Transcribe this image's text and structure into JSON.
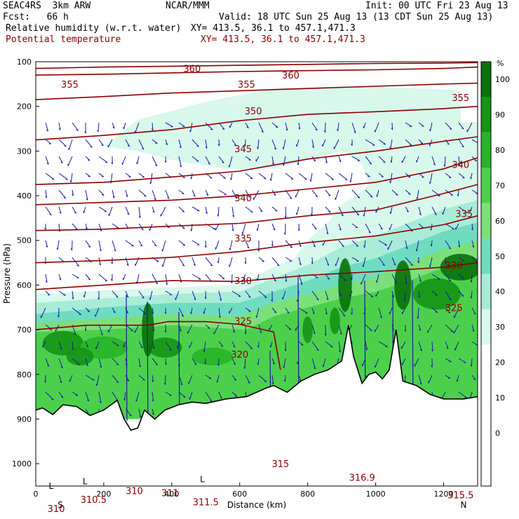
{
  "header": {
    "model": "SEAC4RS  3km ARW",
    "center": "NCAR/MMM",
    "init": "Init: 00 UTC Fri 23 Aug 13",
    "fcst": "Fcst:   66 h",
    "valid": "Valid: 18 UTC Sun 25 Aug 13 (13 CDT Sun 25 Aug 13)",
    "field1": "Relative humidity (w.r.t. water)",
    "xy1": "XY= 413.5, 36.1 to 457.1,471.3",
    "field2": "Potential temperature",
    "xy2": "XY= 413.5, 36.1 to 457.1,471.3"
  },
  "colors": {
    "theta_contour": "#8b0000",
    "wind_arrow": "#1a1aa0",
    "terrain": "#000000",
    "rh_scale": [
      "#ffffff",
      "#ffffff",
      "#ffffff",
      "#ffffff",
      "#d8f8ec",
      "#a8ecd8",
      "#6fdcc0",
      "#7ce07a",
      "#4cd04c",
      "#27b427",
      "#159415",
      "#0a700a"
    ]
  },
  "chart_data": {
    "type": "heatmap",
    "title": "Relative humidity (w.r.t. water); Potential temperature",
    "xlabel": "Distance (km)",
    "ylabel": "Pressure (hPa)",
    "xlim": [
      0,
      1300
    ],
    "ylim": [
      1050,
      100
    ],
    "x_ticks": [
      "0",
      "200",
      "400",
      "600",
      "800",
      "1000",
      "1200"
    ],
    "y_ticks": [
      "100",
      "200",
      "300",
      "400",
      "500",
      "600",
      "700",
      "800",
      "900",
      "1000"
    ],
    "endpoints": {
      "left": "S",
      "right": "N"
    },
    "colorbar": {
      "unit": "%",
      "ticks": [
        "100",
        "90",
        "80",
        "70",
        "60",
        "50",
        "40",
        "30",
        "20",
        "10",
        "0"
      ]
    },
    "rh_fill": [
      {
        "level": 30,
        "bands": [
          [
            0,
            610,
            870
          ],
          [
            330,
            390,
            870
          ],
          [
            600,
            1300,
            280
          ]
        ]
      },
      {
        "level": 60,
        "bands": [
          [
            0,
            650,
            850
          ]
        ]
      }
    ],
    "theta_contours": [
      {
        "label": "360",
        "points": [
          [
            0,
            115
          ],
          [
            200,
            112
          ],
          [
            400,
            110
          ],
          [
            600,
            108
          ],
          [
            800,
            106
          ],
          [
            1000,
            104
          ],
          [
            1200,
            103
          ],
          [
            1300,
            102
          ]
        ]
      },
      {
        "label": "355",
        "points": [
          [
            0,
            130
          ],
          [
            200,
            128
          ],
          [
            400,
            125
          ],
          [
            600,
            122
          ],
          [
            800,
            120
          ],
          [
            1000,
            118
          ],
          [
            1200,
            115
          ],
          [
            1300,
            112
          ]
        ]
      },
      {
        "label": "350",
        "points": [
          [
            0,
            185
          ],
          [
            200,
            178
          ],
          [
            400,
            170
          ],
          [
            600,
            165
          ],
          [
            800,
            160
          ],
          [
            1000,
            155
          ],
          [
            1200,
            150
          ],
          [
            1300,
            148
          ]
        ]
      },
      {
        "label": "345",
        "points": [
          [
            0,
            275
          ],
          [
            200,
            265
          ],
          [
            400,
            252
          ],
          [
            600,
            232
          ],
          [
            800,
            218
          ],
          [
            1000,
            212
          ],
          [
            1200,
            205
          ],
          [
            1300,
            200
          ]
        ]
      },
      {
        "label": "340",
        "points": [
          [
            0,
            375
          ],
          [
            200,
            370
          ],
          [
            400,
            358
          ],
          [
            600,
            345
          ],
          [
            800,
            318
          ],
          [
            1000,
            300
          ],
          [
            1200,
            278
          ],
          [
            1300,
            268
          ]
        ]
      },
      {
        "label": "335",
        "points": [
          [
            0,
            420
          ],
          [
            200,
            415
          ],
          [
            400,
            410
          ],
          [
            600,
            400
          ],
          [
            800,
            385
          ],
          [
            1000,
            370
          ],
          [
            1200,
            340
          ],
          [
            1300,
            315
          ]
        ]
      },
      {
        "label": "330",
        "points": [
          [
            0,
            478
          ],
          [
            200,
            475
          ],
          [
            400,
            468
          ],
          [
            600,
            462
          ],
          [
            800,
            445
          ],
          [
            1000,
            432
          ],
          [
            1200,
            395
          ],
          [
            1300,
            375
          ]
        ]
      },
      {
        "label": "325",
        "points": [
          [
            0,
            550
          ],
          [
            200,
            545
          ],
          [
            400,
            538
          ],
          [
            600,
            525
          ],
          [
            800,
            505
          ],
          [
            1000,
            490
          ],
          [
            1200,
            465
          ],
          [
            1300,
            445
          ]
        ]
      },
      {
        "label": "320",
        "points": [
          [
            0,
            610
          ],
          [
            200,
            600
          ],
          [
            400,
            590
          ],
          [
            600,
            592
          ],
          [
            800,
            578
          ],
          [
            1000,
            570
          ],
          [
            1200,
            560
          ],
          [
            1300,
            550
          ]
        ]
      },
      {
        "label": "315",
        "points": [
          [
            0,
            700
          ],
          [
            150,
            690
          ],
          [
            300,
            690
          ],
          [
            330,
            690
          ],
          [
            390,
            682
          ],
          [
            500,
            682
          ],
          [
            600,
            688
          ],
          [
            700,
            705
          ],
          [
            720,
            790
          ]
        ]
      }
    ],
    "contour_labels": [
      {
        "text": "360",
        "x": 460,
        "y": 115
      },
      {
        "text": "360",
        "x": 750,
        "y": 130
      },
      {
        "text": "355",
        "x": 100,
        "y": 150
      },
      {
        "text": "355",
        "x": 620,
        "y": 150
      },
      {
        "text": "355",
        "x": 1250,
        "y": 180
      },
      {
        "text": "350",
        "x": 640,
        "y": 210
      },
      {
        "text": "345",
        "x": 610,
        "y": 295
      },
      {
        "text": "340",
        "x": 1250,
        "y": 330
      },
      {
        "text": "340",
        "x": 610,
        "y": 405
      },
      {
        "text": "335",
        "x": 1260,
        "y": 440
      },
      {
        "text": "335",
        "x": 610,
        "y": 495
      },
      {
        "text": "330",
        "x": 1230,
        "y": 555
      },
      {
        "text": "330",
        "x": 610,
        "y": 590
      },
      {
        "text": "325",
        "x": 1230,
        "y": 650
      },
      {
        "text": "325",
        "x": 610,
        "y": 680
      },
      {
        "text": "320",
        "x": 600,
        "y": 755
      },
      {
        "text": "315",
        "x": 720,
        "y": 1000
      },
      {
        "text": "310",
        "x": 60,
        "y": 1100
      },
      {
        "text": "310.5",
        "x": 170,
        "y": 1080
      },
      {
        "text": "310",
        "x": 290,
        "y": 1060
      },
      {
        "text": "311",
        "x": 395,
        "y": 1065
      },
      {
        "text": "311.5",
        "x": 500,
        "y": 1085
      },
      {
        "text": "316.9",
        "x": 960,
        "y": 1030
      },
      {
        "text": "315.5",
        "x": 1250,
        "y": 1070
      }
    ],
    "low_markers": [
      {
        "text": "L",
        "x": 45,
        "y": 1050
      },
      {
        "text": "L",
        "x": 145,
        "y": 1040
      },
      {
        "text": "L",
        "x": 490,
        "y": 1035
      }
    ],
    "terrain_surface": [
      [
        0,
        880
      ],
      [
        20,
        875
      ],
      [
        50,
        890
      ],
      [
        80,
        868
      ],
      [
        120,
        872
      ],
      [
        160,
        892
      ],
      [
        200,
        880
      ],
      [
        240,
        858
      ],
      [
        260,
        900
      ],
      [
        280,
        925
      ],
      [
        300,
        920
      ],
      [
        320,
        880
      ],
      [
        350,
        900
      ],
      [
        380,
        880
      ],
      [
        420,
        868
      ],
      [
        460,
        862
      ],
      [
        500,
        865
      ],
      [
        560,
        855
      ],
      [
        620,
        850
      ],
      [
        680,
        830
      ],
      [
        700,
        825
      ],
      [
        740,
        840
      ],
      [
        780,
        815
      ],
      [
        820,
        800
      ],
      [
        860,
        790
      ],
      [
        900,
        770
      ],
      [
        920,
        690
      ],
      [
        935,
        760
      ],
      [
        960,
        820
      ],
      [
        980,
        800
      ],
      [
        1000,
        795
      ],
      [
        1020,
        810
      ],
      [
        1040,
        790
      ],
      [
        1060,
        700
      ],
      [
        1080,
        815
      ],
      [
        1120,
        825
      ],
      [
        1160,
        845
      ],
      [
        1200,
        855
      ],
      [
        1260,
        855
      ],
      [
        1300,
        850
      ]
    ]
  }
}
